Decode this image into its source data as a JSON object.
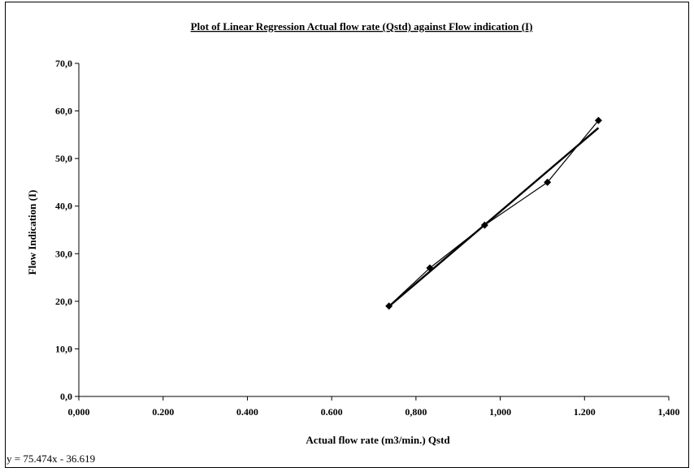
{
  "chart_data": {
    "type": "line",
    "title": "Plot of Linear Regression Actual flow rate (Qstd) against Flow indication (I)",
    "xlabel": "Actual flow rate (m3/min.) Qstd",
    "ylabel": "Flow Indication (I)",
    "xlim": [
      0,
      1.4
    ],
    "ylim": [
      0,
      70
    ],
    "x_ticks": [
      "0,000",
      "0.200",
      "0.400",
      "0.600",
      "0,800",
      "1,000",
      "1.200",
      "1,400"
    ],
    "y_ticks": [
      "0,0",
      "10,0",
      "20,0",
      "30,0",
      "40,0",
      "50,0",
      "60,0",
      "70,0"
    ],
    "grid": false,
    "legend": "none",
    "series": [
      {
        "x": [
          0.736,
          0.833,
          0.963,
          1.112,
          1.233
        ],
        "y": [
          19.0,
          27.0,
          36.0,
          45.0,
          58.0
        ],
        "marker": "diamond",
        "color": "#000000"
      }
    ],
    "trendline": {
      "slope": 75.474,
      "intercept": -36.619,
      "x_range": [
        0.736,
        1.233
      ]
    },
    "equation": "y = 75.474x - 36.619"
  }
}
